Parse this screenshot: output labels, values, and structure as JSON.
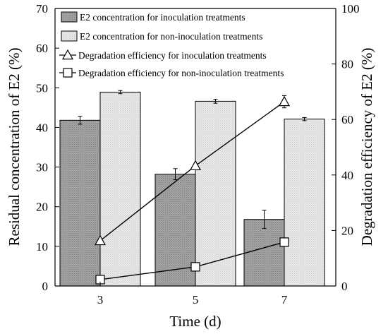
{
  "chart_data": {
    "type": "bar",
    "categories": [
      "3",
      "5",
      "7"
    ],
    "xlabel": "Time (d)",
    "ylabel": "Residual concentration of E2 (%)",
    "y2label": "Degradation efficiency of E2 (%)",
    "ylim": [
      0,
      70
    ],
    "y2lim": [
      0,
      100
    ],
    "yticks": [
      0,
      10,
      20,
      30,
      40,
      50,
      60,
      70
    ],
    "y2ticks": [
      0,
      20,
      40,
      60,
      80,
      100
    ],
    "grid": false,
    "legend_position": "top-left",
    "bar_series": [
      {
        "name": "E2 concentration for inoculation treatments",
        "values": [
          41.8,
          28.2,
          16.8
        ],
        "errors": [
          1.0,
          1.4,
          2.3
        ],
        "color": "#a8a8a8"
      },
      {
        "name": "E2 concentration for non-inoculation treatments",
        "values": [
          48.9,
          46.6,
          42.1
        ],
        "errors": [
          0.4,
          0.5,
          0.4
        ],
        "color": "#e4e4e4"
      }
    ],
    "line_series": [
      {
        "name": "Degradation efficiency for inoculation treatments",
        "marker": "triangle",
        "axis": "right",
        "values": [
          16.3,
          43.3,
          66.4
        ],
        "errors": [
          0,
          0,
          2.2
        ]
      },
      {
        "name": "Degradation efficiency for non-inoculation treatments",
        "marker": "square",
        "axis": "right",
        "values": [
          2.3,
          6.9,
          15.8
        ],
        "errors": [
          0,
          0,
          0
        ]
      }
    ]
  }
}
